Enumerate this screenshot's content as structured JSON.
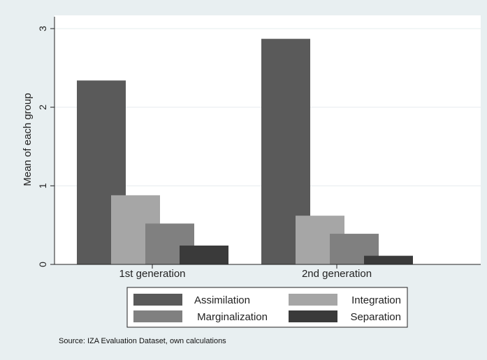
{
  "chart_data": {
    "type": "bar",
    "title": "",
    "xlabel": "",
    "ylabel": "Mean of each group",
    "ylim": [
      0,
      3
    ],
    "yticks": [
      0,
      1,
      2,
      3
    ],
    "grid": true,
    "legend_position": "bottom",
    "categories": [
      "1st generation",
      "2nd generation"
    ],
    "series": [
      {
        "name": "Assimilation",
        "color": "#5a5a5a",
        "values": [
          2.34,
          2.87
        ]
      },
      {
        "name": "Integration",
        "color": "#a6a6a6",
        "values": [
          0.88,
          0.62
        ]
      },
      {
        "name": "Marginalization",
        "color": "#808080",
        "values": [
          0.52,
          0.39
        ]
      },
      {
        "name": "Separation",
        "color": "#3a3a3a",
        "values": [
          0.24,
          0.11
        ]
      }
    ],
    "note": "Source: IZA Evaluation Dataset, own calculations"
  },
  "colors": {
    "background": "#e8eff1",
    "plot_area": "#ffffff",
    "gridline": "#e6ecee"
  }
}
